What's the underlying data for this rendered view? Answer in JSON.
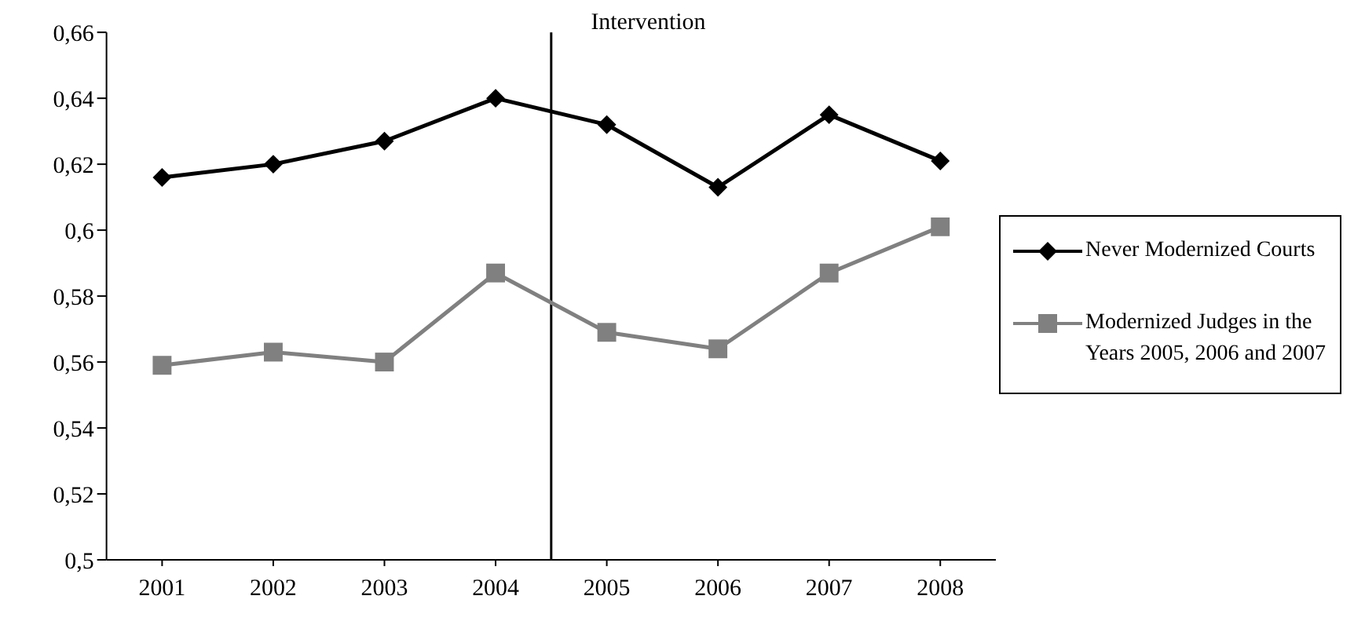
{
  "chart_data": {
    "type": "line",
    "x": [
      2001,
      2002,
      2003,
      2004,
      2005,
      2006,
      2007,
      2008
    ],
    "xlim": [
      2000.5,
      2008.5
    ],
    "xticks": [
      2001,
      2002,
      2003,
      2004,
      2005,
      2006,
      2007,
      2008
    ],
    "ylim": [
      0.5,
      0.66
    ],
    "yticks": [
      {
        "value": 0.5,
        "label": "0,5"
      },
      {
        "value": 0.52,
        "label": "0,52"
      },
      {
        "value": 0.54,
        "label": "0,54"
      },
      {
        "value": 0.56,
        "label": "0,56"
      },
      {
        "value": 0.58,
        "label": "0,58"
      },
      {
        "value": 0.6,
        "label": "0,6"
      },
      {
        "value": 0.62,
        "label": "0,62"
      },
      {
        "value": 0.64,
        "label": "0,64"
      },
      {
        "value": 0.66,
        "label": "0,66"
      }
    ],
    "series": [
      {
        "name": "Never Modernized Courts",
        "color": "#000000",
        "marker": "diamond",
        "values": [
          0.616,
          0.62,
          0.627,
          0.64,
          0.632,
          0.613,
          0.635,
          0.621
        ]
      },
      {
        "name": "Modernized Judges in the Years 2005, 2006 and 2007",
        "color": "#808080",
        "marker": "square",
        "values": [
          0.559,
          0.563,
          0.56,
          0.587,
          0.569,
          0.564,
          0.587,
          0.601
        ]
      }
    ],
    "ref_lines": [
      {
        "axis": "x",
        "value": 2004.5,
        "label": "Intervention",
        "color": "#000000"
      }
    ],
    "grid": false,
    "legend": "right"
  }
}
